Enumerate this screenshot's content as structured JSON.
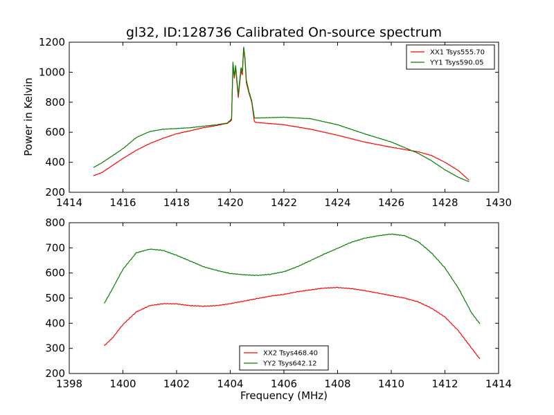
{
  "figure": {
    "title": "gl32, ID:128736 Calibrated On-source spectrum",
    "ylabel": "Power in Kelvin",
    "xlabel": "Frequency (MHz)"
  },
  "colors": {
    "xx": "#ff0000",
    "yy": "#008000"
  },
  "chart_data": [
    {
      "type": "line",
      "xlim": [
        1414,
        1430
      ],
      "ylim": [
        200,
        1200
      ],
      "xticks": [
        1414,
        1416,
        1418,
        1420,
        1422,
        1424,
        1426,
        1428,
        1430
      ],
      "yticks": [
        200,
        400,
        600,
        800,
        1000,
        1200
      ],
      "legend_position": "top-right",
      "series": [
        {
          "name": "XX1 Tsys555.70",
          "color": "#ff0000",
          "points": [
            [
              1414.9,
              310
            ],
            [
              1415.2,
              330
            ],
            [
              1415.5,
              365
            ],
            [
              1416.0,
              425
            ],
            [
              1416.5,
              480
            ],
            [
              1417.0,
              525
            ],
            [
              1417.5,
              560
            ],
            [
              1418.0,
              590
            ],
            [
              1418.5,
              610
            ],
            [
              1419.0,
              630
            ],
            [
              1419.5,
              645
            ],
            [
              1419.9,
              660
            ],
            [
              1420.05,
              680
            ],
            [
              1420.1,
              1050
            ],
            [
              1420.15,
              960
            ],
            [
              1420.2,
              1030
            ],
            [
              1420.3,
              830
            ],
            [
              1420.4,
              1010
            ],
            [
              1420.45,
              980
            ],
            [
              1420.5,
              1160
            ],
            [
              1420.55,
              1080
            ],
            [
              1420.6,
              930
            ],
            [
              1420.7,
              860
            ],
            [
              1420.8,
              800
            ],
            [
              1420.9,
              670
            ],
            [
              1421.0,
              665
            ],
            [
              1422.0,
              650
            ],
            [
              1423.0,
              620
            ],
            [
              1424.0,
              580
            ],
            [
              1425.0,
              535
            ],
            [
              1426.0,
              500
            ],
            [
              1427.0,
              470
            ],
            [
              1427.5,
              445
            ],
            [
              1428.0,
              400
            ],
            [
              1428.5,
              345
            ],
            [
              1428.9,
              280
            ]
          ]
        },
        {
          "name": "YY1 Tsys590.05",
          "color": "#008000",
          "points": [
            [
              1414.9,
              365
            ],
            [
              1415.2,
              395
            ],
            [
              1415.5,
              430
            ],
            [
              1416.0,
              490
            ],
            [
              1416.5,
              565
            ],
            [
              1417.0,
              605
            ],
            [
              1417.5,
              620
            ],
            [
              1418.0,
              625
            ],
            [
              1418.5,
              630
            ],
            [
              1419.0,
              640
            ],
            [
              1419.5,
              650
            ],
            [
              1419.9,
              662
            ],
            [
              1420.05,
              690
            ],
            [
              1420.1,
              1070
            ],
            [
              1420.15,
              970
            ],
            [
              1420.2,
              1045
            ],
            [
              1420.3,
              850
            ],
            [
              1420.4,
              1030
            ],
            [
              1420.45,
              1000
            ],
            [
              1420.5,
              1170
            ],
            [
              1420.55,
              1095
            ],
            [
              1420.6,
              950
            ],
            [
              1420.7,
              870
            ],
            [
              1420.8,
              810
            ],
            [
              1420.9,
              695
            ],
            [
              1421.0,
              695
            ],
            [
              1422.0,
              700
            ],
            [
              1423.0,
              690
            ],
            [
              1424.0,
              650
            ],
            [
              1425.0,
              590
            ],
            [
              1426.0,
              535
            ],
            [
              1427.0,
              460
            ],
            [
              1427.5,
              410
            ],
            [
              1428.0,
              350
            ],
            [
              1428.5,
              300
            ],
            [
              1428.9,
              270
            ]
          ]
        }
      ]
    },
    {
      "type": "line",
      "xlim": [
        1398,
        1414
      ],
      "ylim": [
        200,
        800
      ],
      "xticks": [
        1398,
        1400,
        1402,
        1404,
        1406,
        1408,
        1410,
        1412,
        1414
      ],
      "yticks": [
        200,
        300,
        400,
        500,
        600,
        700,
        800
      ],
      "legend_position": "bottom-center",
      "series": [
        {
          "name": "XX2 Tsys468.40",
          "color": "#ff0000",
          "points": [
            [
              1399.3,
              310
            ],
            [
              1399.6,
              340
            ],
            [
              1400.0,
              395
            ],
            [
              1400.5,
              445
            ],
            [
              1401.0,
              470
            ],
            [
              1401.5,
              478
            ],
            [
              1402.0,
              477
            ],
            [
              1402.5,
              470
            ],
            [
              1403.0,
              468
            ],
            [
              1403.5,
              470
            ],
            [
              1404.0,
              478
            ],
            [
              1404.5,
              488
            ],
            [
              1405.0,
              498
            ],
            [
              1405.5,
              508
            ],
            [
              1406.0,
              515
            ],
            [
              1406.5,
              525
            ],
            [
              1407.0,
              533
            ],
            [
              1407.5,
              540
            ],
            [
              1408.0,
              542
            ],
            [
              1408.5,
              538
            ],
            [
              1409.0,
              530
            ],
            [
              1409.5,
              520
            ],
            [
              1410.0,
              510
            ],
            [
              1410.5,
              500
            ],
            [
              1411.0,
              485
            ],
            [
              1411.5,
              460
            ],
            [
              1412.0,
              425
            ],
            [
              1412.5,
              370
            ],
            [
              1413.0,
              300
            ],
            [
              1413.3,
              258
            ]
          ]
        },
        {
          "name": "YY2 Tsys642.12",
          "color": "#008000",
          "points": [
            [
              1399.3,
              478
            ],
            [
              1399.6,
              535
            ],
            [
              1400.0,
              615
            ],
            [
              1400.5,
              680
            ],
            [
              1401.0,
              695
            ],
            [
              1401.5,
              690
            ],
            [
              1402.0,
              670
            ],
            [
              1402.5,
              648
            ],
            [
              1403.0,
              625
            ],
            [
              1403.5,
              610
            ],
            [
              1404.0,
              598
            ],
            [
              1404.5,
              593
            ],
            [
              1405.0,
              590
            ],
            [
              1405.5,
              595
            ],
            [
              1406.0,
              605
            ],
            [
              1406.5,
              625
            ],
            [
              1407.0,
              650
            ],
            [
              1407.5,
              675
            ],
            [
              1408.0,
              698
            ],
            [
              1408.5,
              722
            ],
            [
              1409.0,
              738
            ],
            [
              1409.5,
              748
            ],
            [
              1410.0,
              755
            ],
            [
              1410.5,
              748
            ],
            [
              1411.0,
              725
            ],
            [
              1411.5,
              680
            ],
            [
              1412.0,
              620
            ],
            [
              1412.5,
              540
            ],
            [
              1413.0,
              440
            ],
            [
              1413.3,
              398
            ]
          ]
        }
      ]
    }
  ]
}
